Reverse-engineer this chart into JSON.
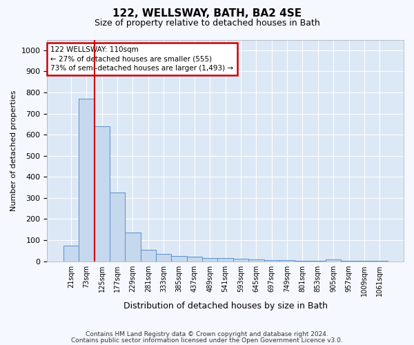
{
  "title": "122, WELLSWAY, BATH, BA2 4SE",
  "subtitle": "Size of property relative to detached houses in Bath",
  "xlabel": "Distribution of detached houses by size in Bath",
  "ylabel": "Number of detached properties",
  "bar_color": "#c5d8ee",
  "bar_edge_color": "#5b8fc9",
  "annotation_box_color": "#cc0000",
  "vline_color": "#cc0000",
  "categories": [
    "21sqm",
    "73sqm",
    "125sqm",
    "177sqm",
    "229sqm",
    "281sqm",
    "333sqm",
    "385sqm",
    "437sqm",
    "489sqm",
    "541sqm",
    "593sqm",
    "645sqm",
    "697sqm",
    "749sqm",
    "801sqm",
    "853sqm",
    "905sqm",
    "957sqm",
    "1009sqm",
    "1061sqm"
  ],
  "values": [
    75,
    770,
    640,
    325,
    135,
    55,
    35,
    25,
    20,
    15,
    15,
    12,
    8,
    5,
    5,
    3,
    3,
    8,
    3,
    3,
    3
  ],
  "ylim": [
    0,
    1050
  ],
  "yticks": [
    0,
    100,
    200,
    300,
    400,
    500,
    600,
    700,
    800,
    900,
    1000
  ],
  "annotation_text": "122 WELLSWAY: 110sqm\n← 27% of detached houses are smaller (555)\n73% of semi-detached houses are larger (1,493) →",
  "vline_x": 1.5,
  "footer_line1": "Contains HM Land Registry data © Crown copyright and database right 2024.",
  "footer_line2": "Contains public sector information licensed under the Open Government Licence v3.0.",
  "fig_bg_color": "#f5f8fe",
  "plot_bg_color": "#dce8f5",
  "grid_color": "#ffffff",
  "title_fontsize": 11,
  "subtitle_fontsize": 9,
  "ylabel_fontsize": 8,
  "xlabel_fontsize": 9,
  "tick_fontsize": 7,
  "footer_fontsize": 6.5
}
